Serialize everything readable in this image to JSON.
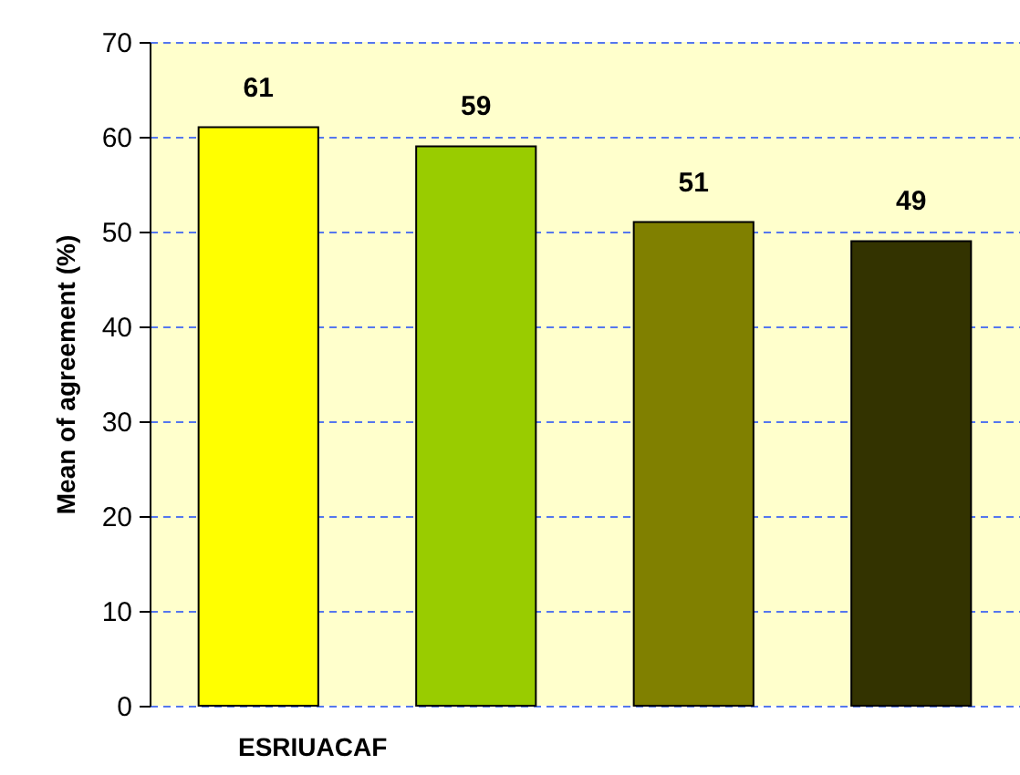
{
  "chart_data": {
    "type": "bar",
    "xlabel": "ESRIUACAF",
    "ylabel": "Mean of agreement (%)",
    "categories": [
      null,
      null,
      null,
      null
    ],
    "values": [
      61,
      59,
      51,
      49
    ],
    "colors": [
      "#ffff00",
      "#99cc00",
      "#808000",
      "#333300"
    ],
    "ylim": [
      0,
      70
    ],
    "yticks": [
      0,
      10,
      20,
      30,
      40,
      50,
      60,
      70
    ],
    "grid": "y",
    "data_labels": true
  }
}
